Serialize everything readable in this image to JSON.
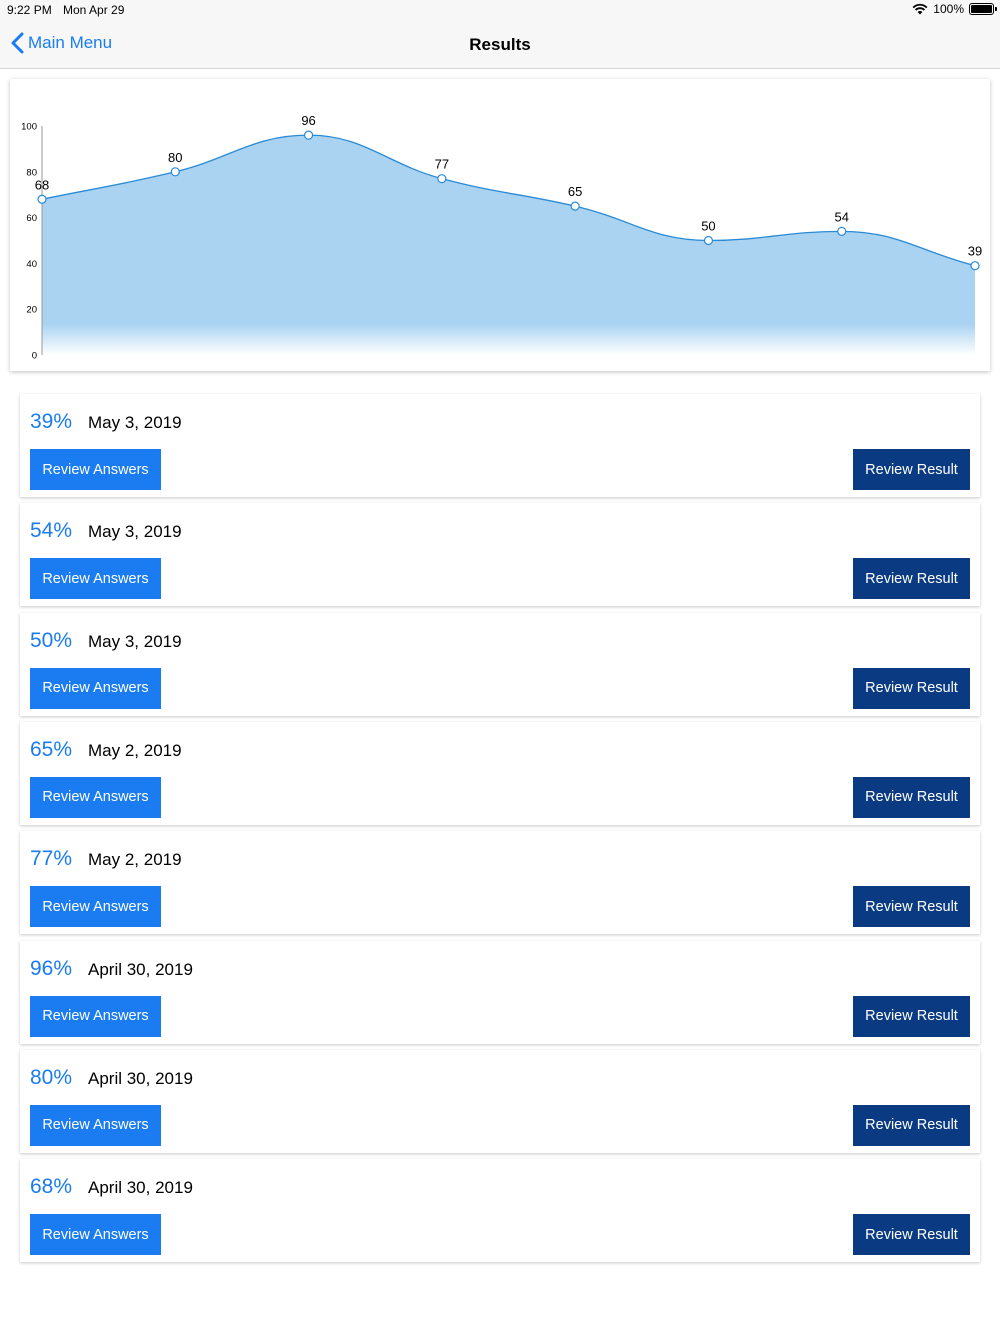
{
  "status_bar": {
    "time": "9:22 PM",
    "date": "Mon Apr 29",
    "battery": "100%"
  },
  "nav": {
    "back_label": "Main Menu",
    "title": "Results"
  },
  "colors": {
    "accent": "#1a7cf0",
    "dark_button": "#0a3b82",
    "chart_fill": "#a9d3f1",
    "chart_line": "#2a8ad6"
  },
  "chart_data": {
    "type": "area",
    "x": [
      1,
      2,
      3,
      4,
      5,
      6,
      7,
      8
    ],
    "values": [
      68,
      80,
      96,
      77,
      65,
      50,
      54,
      39
    ],
    "ylim": [
      0,
      100
    ],
    "yticks": [
      0,
      20,
      40,
      60,
      80,
      100
    ],
    "title": "",
    "xlabel": "",
    "ylabel": "",
    "grid": false
  },
  "results": [
    {
      "score": "39%",
      "date": "May 3, 2019",
      "answers_label": "Review Answers",
      "result_label": "Review Result"
    },
    {
      "score": "54%",
      "date": "May 3, 2019",
      "answers_label": "Review Answers",
      "result_label": "Review Result"
    },
    {
      "score": "50%",
      "date": "May 3, 2019",
      "answers_label": "Review Answers",
      "result_label": "Review Result"
    },
    {
      "score": "65%",
      "date": "May 2, 2019",
      "answers_label": "Review Answers",
      "result_label": "Review Result"
    },
    {
      "score": "77%",
      "date": "May 2, 2019",
      "answers_label": "Review Answers",
      "result_label": "Review Result"
    },
    {
      "score": "96%",
      "date": "April 30, 2019",
      "answers_label": "Review Answers",
      "result_label": "Review Result"
    },
    {
      "score": "80%",
      "date": "April 30, 2019",
      "answers_label": "Review Answers",
      "result_label": "Review Result"
    },
    {
      "score": "68%",
      "date": "April 30, 2019",
      "answers_label": "Review Answers",
      "result_label": "Review Result"
    }
  ]
}
